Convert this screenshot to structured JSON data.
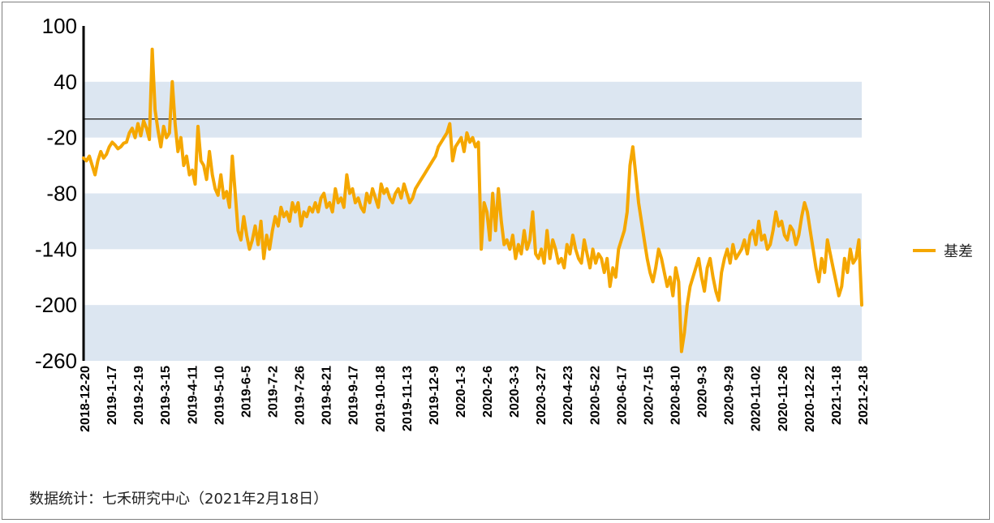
{
  "chart_data": {
    "type": "line",
    "yticks": [
      100,
      40,
      -20,
      -80,
      -140,
      -200,
      -260
    ],
    "ylim": [
      -260,
      100
    ],
    "xtick_labels": [
      "2018-12-20",
      "2019-1-17",
      "2019-2-19",
      "2019-3-15",
      "2019-4-11",
      "2019-5-10",
      "2019-6-5",
      "2019-7-2",
      "2019-7-26",
      "2019-8-21",
      "2019-9-17",
      "2019-10-18",
      "2019-11-13",
      "2019-12-9",
      "2020-1-3",
      "2020-2-6",
      "2020-3-3",
      "2020-3-27",
      "2020-4-23",
      "2020-5-22",
      "2020-6-17",
      "2020-7-15",
      "2020-8-10",
      "2020-9-3",
      "2020-9-29",
      "2020-11-02",
      "2020-11-26",
      "2020-12-22",
      "2021-1-18",
      "2021-2-18"
    ],
    "reference_line_y": 0,
    "shaded_bands": [
      [
        -260,
        -200
      ],
      [
        -140,
        -80
      ],
      [
        -20,
        40
      ]
    ],
    "series": [
      {
        "name": "基差",
        "color": "#f5a700",
        "x_range": [
          "2018-12-20",
          "2021-2-18"
        ],
        "values": [
          -42,
          -45,
          -40,
          -50,
          -60,
          -45,
          -35,
          -42,
          -38,
          -30,
          -25,
          -28,
          -32,
          -30,
          -26,
          -25,
          -15,
          -10,
          -20,
          -5,
          -18,
          -2,
          -10,
          -22,
          75,
          10,
          -12,
          -30,
          -8,
          -20,
          -15,
          40,
          -5,
          -35,
          -20,
          -50,
          -40,
          -60,
          -55,
          -70,
          -8,
          -45,
          -50,
          -65,
          -35,
          -60,
          -75,
          -82,
          -60,
          -85,
          -78,
          -95,
          -40,
          -80,
          -120,
          -130,
          -105,
          -125,
          -140,
          -130,
          -115,
          -135,
          -110,
          -150,
          -125,
          -140,
          -120,
          -105,
          -115,
          -95,
          -105,
          -100,
          -110,
          -90,
          -100,
          -90,
          -115,
          -100,
          -105,
          -95,
          -100,
          -90,
          -100,
          -85,
          -80,
          -95,
          -90,
          -100,
          -75,
          -90,
          -85,
          -95,
          -60,
          -80,
          -75,
          -90,
          -85,
          -95,
          -100,
          -80,
          -90,
          -75,
          -85,
          -95,
          -70,
          -80,
          -75,
          -85,
          -90,
          -80,
          -75,
          -85,
          -70,
          -80,
          -90,
          -85,
          -75,
          -70,
          -65,
          -60,
          -55,
          -50,
          -45,
          -40,
          -30,
          -25,
          -20,
          -15,
          -5,
          -45,
          -30,
          -25,
          -20,
          -35,
          -15,
          -25,
          -20,
          -30,
          -25,
          -140,
          -90,
          -100,
          -130,
          -80,
          -120,
          -75,
          -110,
          -135,
          -130,
          -140,
          -125,
          -150,
          -135,
          -145,
          -120,
          -140,
          -130,
          -100,
          -145,
          -150,
          -140,
          -155,
          -120,
          -150,
          -130,
          -140,
          -155,
          -150,
          -160,
          -135,
          -145,
          -125,
          -140,
          -150,
          -155,
          -130,
          -145,
          -160,
          -140,
          -155,
          -145,
          -150,
          -165,
          -150,
          -180,
          -160,
          -170,
          -140,
          -130,
          -120,
          -100,
          -50,
          -30,
          -60,
          -90,
          -110,
          -130,
          -150,
          -165,
          -175,
          -160,
          -140,
          -150,
          -165,
          -180,
          -170,
          -190,
          -160,
          -175,
          -250,
          -230,
          -200,
          -180,
          -170,
          -160,
          -150,
          -170,
          -185,
          -160,
          -150,
          -170,
          -185,
          -195,
          -165,
          -150,
          -140,
          -155,
          -135,
          -150,
          -145,
          -140,
          -130,
          -145,
          -125,
          -120,
          -135,
          -110,
          -130,
          -125,
          -140,
          -135,
          -120,
          -100,
          -115,
          -110,
          -125,
          -130,
          -115,
          -120,
          -135,
          -125,
          -105,
          -90,
          -100,
          -120,
          -140,
          -160,
          -175,
          -150,
          -165,
          -130,
          -145,
          -160,
          -175,
          -190,
          -180,
          -150,
          -165,
          -140,
          -155,
          -150,
          -130,
          -200
        ]
      }
    ]
  },
  "source_note": "数据统计：七禾研究中心（2021年2月18日）"
}
